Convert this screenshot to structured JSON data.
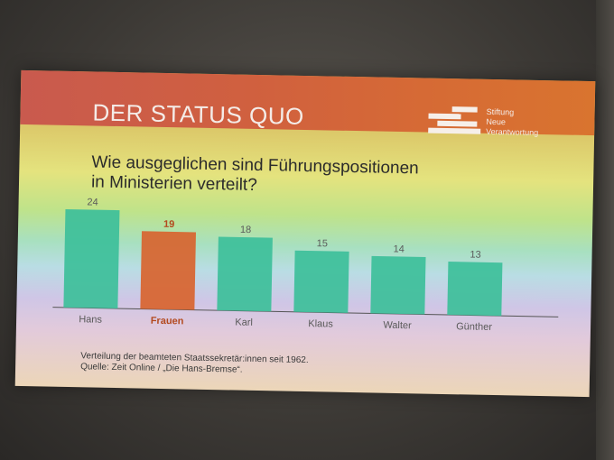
{
  "header": {
    "title": "DER STATUS QUO"
  },
  "logo": {
    "lines": [
      "Stiftung",
      "Neue",
      "Verantwortung"
    ]
  },
  "question": {
    "line1": "Wie ausgeglichen sind Führungspositionen",
    "line2": "in Ministerien verteilt?"
  },
  "chart_data": {
    "type": "bar",
    "categories": [
      "Hans",
      "Frauen",
      "Karl",
      "Klaus",
      "Walter",
      "Günther"
    ],
    "values": [
      24,
      19,
      18,
      15,
      14,
      13
    ],
    "highlight_index": 1,
    "colors": {
      "default": "#3dbf9a",
      "highlight": "#d8642f",
      "highlight_text": "#b34a1f",
      "label": "#5a5a5a"
    },
    "title": "",
    "xlabel": "",
    "ylabel": "",
    "ylim": [
      0,
      26
    ],
    "grid": false
  },
  "footnote": {
    "line1": "Verteilung der beamteten Staatssekretär:innen seit 1962.",
    "line2": "Quelle: Zeit Online / „Die Hans-Bremse“."
  }
}
